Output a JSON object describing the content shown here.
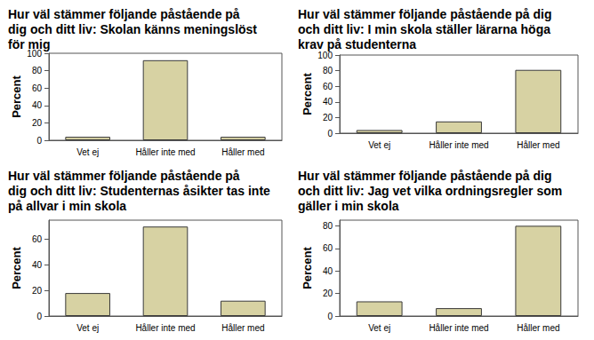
{
  "chart_data": [
    {
      "type": "bar",
      "title": "Hur väl stämmer följande påstående på dig och ditt liv: Skolan känns meningslöst för mig",
      "y_label": "Percent",
      "categories": [
        "Vet ej",
        "Håller inte med",
        "Håller med"
      ],
      "values": [
        4,
        92,
        4
      ],
      "color": "#d7d2a3",
      "ylim": [
        0,
        100
      ],
      "yticks": [
        0,
        20,
        40,
        60,
        80,
        100
      ],
      "grid": false
    },
    {
      "type": "bar",
      "title": "Hur väl stämmer följande påstående på dig och ditt liv: I min skola ställer lärarna höga krav på studenterna",
      "y_label": "Percent",
      "categories": [
        "Vet ej",
        "Håller inte med",
        "Håller med"
      ],
      "values": [
        4,
        15,
        81
      ],
      "color": "#d7d2a3",
      "ylim": [
        0,
        100
      ],
      "yticks": [
        0,
        20,
        40,
        60,
        80,
        100
      ],
      "grid": false
    },
    {
      "type": "bar",
      "title": "Hur väl stämmer följande påstående på dig och ditt liv: Studenternas åsikter tas inte på allvar i min skola",
      "y_label": "Percent",
      "categories": [
        "Vet ej",
        "Håller inte med",
        "Håller med"
      ],
      "values": [
        18,
        70,
        12
      ],
      "color": "#d7d2a3",
      "ylim": [
        0,
        75
      ],
      "yticks": [
        0,
        20,
        40,
        60
      ],
      "grid": false
    },
    {
      "type": "bar",
      "title": "Hur väl stämmer följande påstående på dig och ditt liv: Jag vet vilka ordningsregler som gäller i min skola",
      "y_label": "Percent",
      "categories": [
        "Vet ej",
        "Håller inte med",
        "Håller med"
      ],
      "values": [
        13,
        7,
        80
      ],
      "color": "#d7d2a3",
      "ylim": [
        0,
        85
      ],
      "yticks": [
        0,
        20,
        40,
        60,
        80
      ],
      "grid": false
    }
  ]
}
